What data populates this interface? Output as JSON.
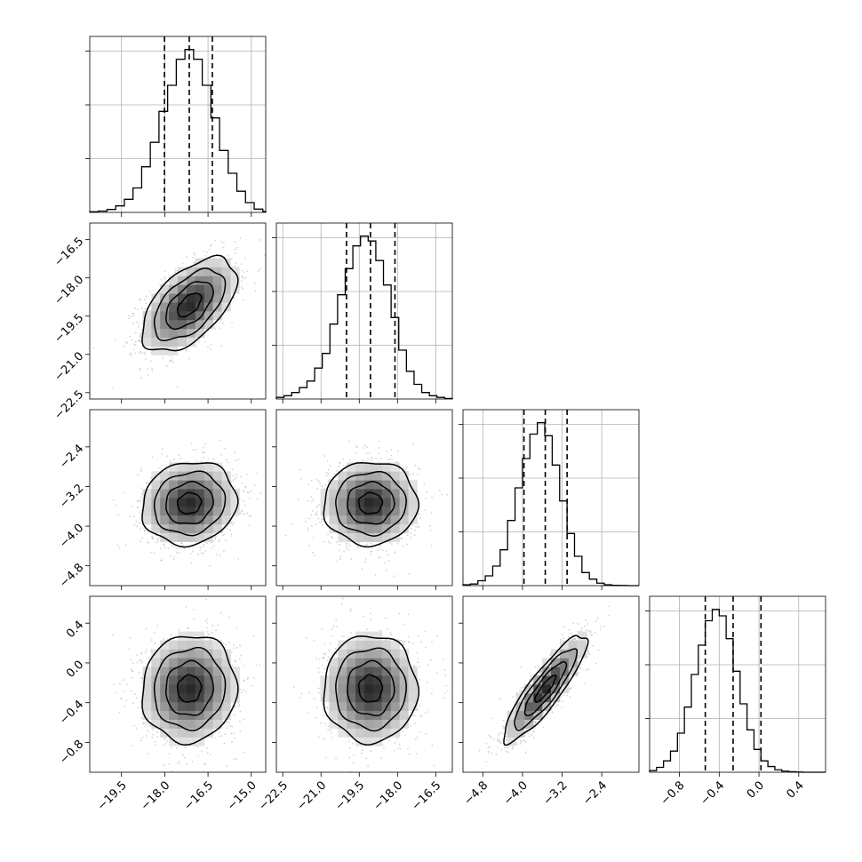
{
  "chart_data": {
    "type": "corner",
    "title": "",
    "parameters": [
      {
        "axis_label": "",
        "ticks": [
          -19.5,
          -18.0,
          -16.5,
          -15.0
        ],
        "tick_labels": [
          "−19.5",
          "−18.0",
          "−16.5",
          "−15.0"
        ],
        "range": [
          -20.6,
          -14.5
        ],
        "quantiles": [
          -18.01,
          -17.15,
          -16.35
        ],
        "hist_bin_edges_start": -20.6,
        "hist_bin_width": 0.3,
        "hist_values": [
          0.004,
          0.008,
          0.018,
          0.04,
          0.08,
          0.15,
          0.28,
          0.43,
          0.62,
          0.78,
          0.94,
          1.0,
          0.94,
          0.78,
          0.58,
          0.38,
          0.24,
          0.13,
          0.06,
          0.02,
          0.006
        ]
      },
      {
        "axis_label": "",
        "ticks": [
          -22.5,
          -21.0,
          -19.5,
          -18.0,
          -16.5
        ],
        "tick_labels": [
          "−22.5",
          "−21.0",
          "−19.5",
          "−18.0",
          "−16.5"
        ],
        "range": [
          -22.75,
          -15.85
        ],
        "quantiles": [
          -20.0,
          -19.06,
          -18.1
        ],
        "hist_bin_edges_start": -22.75,
        "hist_bin_width": 0.3,
        "hist_values": [
          0.01,
          0.02,
          0.04,
          0.07,
          0.11,
          0.19,
          0.28,
          0.46,
          0.64,
          0.8,
          0.94,
          1.0,
          0.97,
          0.85,
          0.7,
          0.5,
          0.3,
          0.17,
          0.09,
          0.04,
          0.02,
          0.01,
          0.003
        ]
      },
      {
        "axis_label": "",
        "ticks": [
          -4.8,
          -4.0,
          -3.2,
          -2.4
        ],
        "tick_labels": [
          "−4.8",
          "−4.0",
          "−3.2",
          "−2.4"
        ],
        "range": [
          -5.2,
          -1.65
        ],
        "quantiles": [
          -3.97,
          -3.54,
          -3.1
        ],
        "hist_bin_edges_start": -5.2,
        "hist_bin_width": 0.15,
        "hist_values": [
          0.005,
          0.01,
          0.03,
          0.06,
          0.12,
          0.22,
          0.4,
          0.6,
          0.78,
          0.93,
          1.0,
          0.92,
          0.74,
          0.52,
          0.32,
          0.18,
          0.08,
          0.04,
          0.015,
          0.005,
          0.002,
          0.001,
          0.0,
          0.0
        ]
      },
      {
        "axis_label": "",
        "ticks": [
          -0.8,
          -0.4,
          0.0,
          0.4
        ],
        "tick_labels": [
          "−0.8",
          "−0.4",
          "0.0",
          "0.4"
        ],
        "range": [
          -1.1,
          0.67
        ],
        "quantiles": [
          -0.54,
          -0.26,
          0.02
        ],
        "hist_bin_edges_start": -1.1,
        "hist_bin_width": 0.07,
        "hist_values": [
          0.01,
          0.03,
          0.07,
          0.13,
          0.24,
          0.4,
          0.6,
          0.78,
          0.93,
          1.0,
          0.96,
          0.82,
          0.62,
          0.42,
          0.26,
          0.14,
          0.07,
          0.035,
          0.015,
          0.007,
          0.003,
          0.001,
          0.0,
          0.0,
          0.0
        ]
      }
    ],
    "pairs": [
      {
        "row": 1,
        "col": 0,
        "mean": [
          -17.15,
          -19.06
        ],
        "sd": [
          0.82,
          0.92
        ],
        "corr": 0.55
      },
      {
        "row": 2,
        "col": 0,
        "mean": [
          -17.15,
          -3.54
        ],
        "sd": [
          0.82,
          0.42
        ],
        "corr": 0.1
      },
      {
        "row": 2,
        "col": 1,
        "mean": [
          -19.06,
          -3.54
        ],
        "sd": [
          0.92,
          0.42
        ],
        "corr": 0.02
      },
      {
        "row": 3,
        "col": 0,
        "mean": [
          -17.15,
          -0.26
        ],
        "sd": [
          0.82,
          0.27
        ],
        "corr": 0.05
      },
      {
        "row": 3,
        "col": 1,
        "mean": [
          -19.06,
          -0.26
        ],
        "sd": [
          0.92,
          0.27
        ],
        "corr": 0.0
      },
      {
        "row": 3,
        "col": 2,
        "mean": [
          -3.54,
          -0.26
        ],
        "sd": [
          0.42,
          0.27
        ],
        "corr": 0.88
      }
    ],
    "contour_levels_sigma": [
      0.5,
      1.0,
      1.5,
      2.0
    ],
    "grid": true,
    "colors": {
      "line": "#000000",
      "scatter": "#9e9e9e",
      "grid": "#b0b0b0",
      "density_dark": "#000000"
    }
  }
}
